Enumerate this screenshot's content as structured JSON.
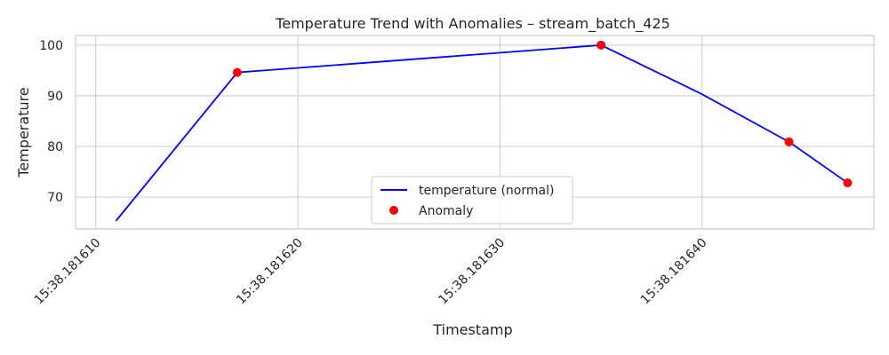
{
  "chart_data": {
    "type": "line",
    "title": "Temperature Trend with Anomalies – stream_batch_425",
    "xlabel": "Timestamp",
    "ylabel": "Temperature",
    "x_unit": "microseconds after 15:38.181600",
    "xlim": [
      9.0,
      48.5
    ],
    "ylim": [
      63.7,
      101.9
    ],
    "x_ticks": [
      {
        "value": 10,
        "label": "15:38.181610"
      },
      {
        "value": 20,
        "label": "15:38.181620"
      },
      {
        "value": 30,
        "label": "15:38.181630"
      },
      {
        "value": 40,
        "label": "15:38.181640"
      }
    ],
    "y_ticks": [
      70,
      80,
      90,
      100
    ],
    "grid": true,
    "legend_position": "lower center",
    "series": [
      {
        "name": "temperature (normal)",
        "kind": "line",
        "color": "#0000ff",
        "x": [
          11,
          17,
          35,
          40,
          44.3,
          47.2
        ],
        "y": [
          65.3,
          94.6,
          100.0,
          90.3,
          80.9,
          72.8
        ]
      },
      {
        "name": "Anomaly",
        "kind": "scatter",
        "color": "#ff0000",
        "x": [
          17,
          35,
          44.3,
          47.2
        ],
        "y": [
          94.6,
          100.0,
          80.9,
          72.8
        ]
      }
    ]
  }
}
